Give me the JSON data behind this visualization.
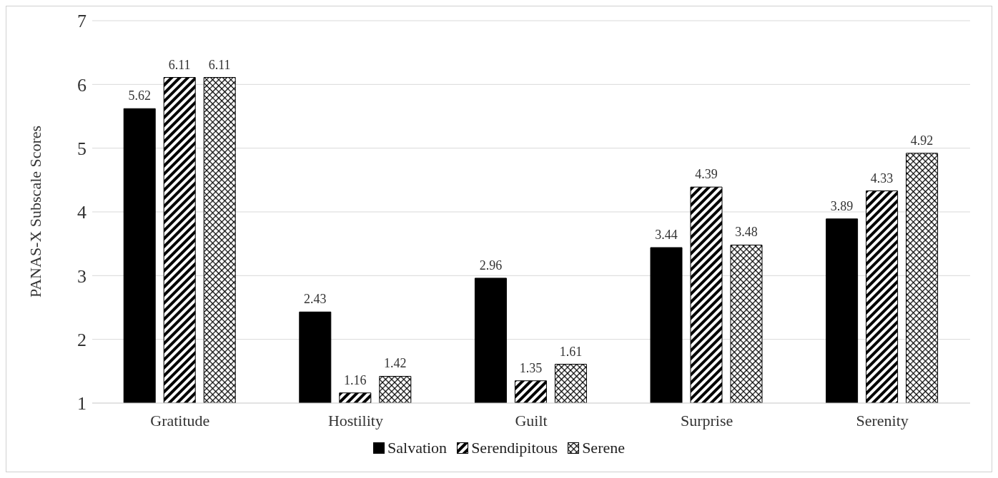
{
  "chart_data": {
    "type": "bar",
    "ylabel": "PANAS-X Subscale Scores",
    "categories": [
      "Gratitude",
      "Hostility",
      "Guilt",
      "Surprise",
      "Serenity"
    ],
    "series": [
      {
        "name": "Salvation",
        "color": "#000000",
        "values": [
          5.62,
          2.43,
          2.96,
          3.44,
          3.89
        ]
      },
      {
        "name": "Serendipitous",
        "color": "#000000",
        "values": [
          6.11,
          1.16,
          1.35,
          4.39,
          4.33
        ]
      },
      {
        "name": "Serene",
        "color": "#000000",
        "values": [
          6.11,
          1.42,
          1.61,
          3.48,
          4.92
        ]
      }
    ],
    "ylim": [
      1,
      7
    ],
    "yticks": [
      1,
      2,
      3,
      4,
      5,
      6,
      7
    ],
    "grid": "y",
    "legend": "bottom",
    "data_labels": true
  }
}
